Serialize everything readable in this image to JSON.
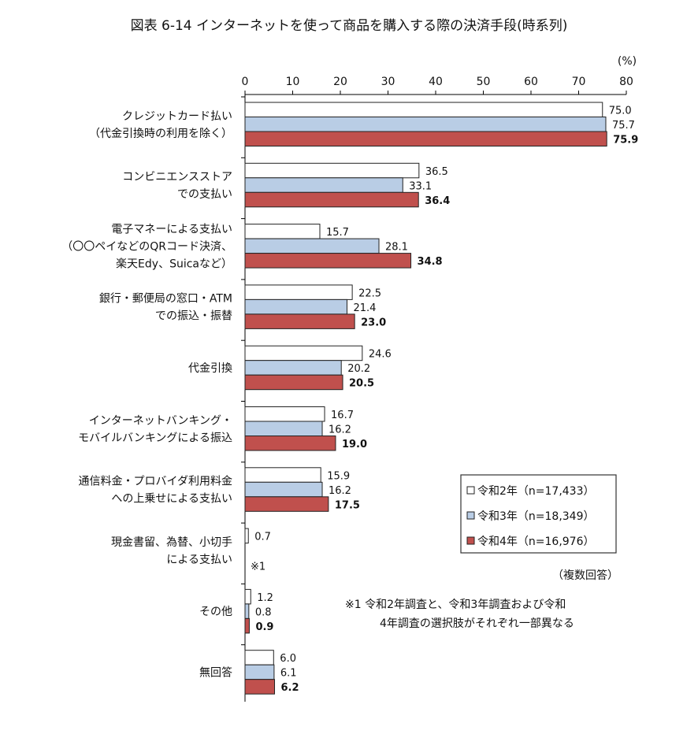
{
  "chart_data": {
    "type": "bar",
    "orientation": "horizontal",
    "title": "図表 6-14 インターネットを使って商品を購入する際の決済手段(時系列)",
    "unit": "(%)",
    "xlim": [
      0,
      80
    ],
    "ticks": [
      0,
      10,
      20,
      30,
      40,
      50,
      60,
      70,
      80
    ],
    "grid": false,
    "legend_position": "right",
    "categories": [
      [
        "クレジットカード払い",
        "（代金引換時の利用を除く）"
      ],
      [
        "コンビニエンスストア",
        "での支払い"
      ],
      [
        "電子マネーによる支払い",
        "（〇〇ペイなどのQRコード決済、",
        "楽天Edy、Suicaなど）"
      ],
      [
        "銀行・郵便局の窓口・ATM",
        "での振込・振替"
      ],
      [
        "代金引換"
      ],
      [
        "インターネットバンキング・",
        "モバイルバンキングによる振込"
      ],
      [
        "通信料金・プロバイダ利用料金",
        "への上乗せによる支払い"
      ],
      [
        "現金書留、為替、小切手",
        "による支払い"
      ],
      [
        "その他"
      ],
      [
        "無回答"
      ]
    ],
    "series": [
      {
        "name": "令和2年（n=17,433）",
        "color": "#ffffff",
        "values": [
          75.0,
          36.5,
          15.7,
          22.5,
          24.6,
          16.7,
          15.9,
          0.7,
          1.2,
          6.0
        ]
      },
      {
        "name": "令和3年（n=18,349）",
        "color": "#b9cde5",
        "values": [
          75.7,
          33.1,
          28.1,
          21.4,
          20.2,
          16.2,
          16.2,
          null,
          0.8,
          6.1
        ]
      },
      {
        "name": "令和4年（n=16,976）",
        "color": "#c0504d",
        "values": [
          75.9,
          36.4,
          34.8,
          23.0,
          20.5,
          19.0,
          17.5,
          null,
          0.9,
          6.2
        ]
      }
    ],
    "annotations": {
      "marker": "※1",
      "multiple_answer": "（複数回答）",
      "footnote": [
        "※1 令和2年調査と、令和3年調査および令和",
        "4年調査の選択肢がそれぞれ一部異なる"
      ]
    }
  }
}
